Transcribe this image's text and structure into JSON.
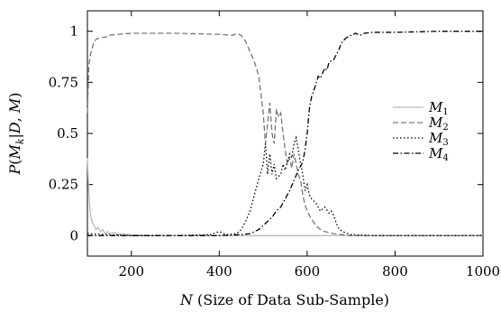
{
  "chart_data": {
    "type": "line",
    "xlabel": "N (Size of Data Sub-Sample)",
    "ylabel": "P(M_k|D,M)",
    "xlim": [
      100,
      1000
    ],
    "ylim": [
      -0.1,
      1.1
    ],
    "x_ticks": [
      200,
      400,
      600,
      800,
      1000
    ],
    "y_ticks": [
      0,
      0.25,
      0.5,
      0.75,
      1
    ],
    "x_tick_labels": [
      "200",
      "400",
      "600",
      "800",
      "1000"
    ],
    "y_tick_labels": [
      "0",
      "0.25",
      "0.5",
      "0.75",
      "1"
    ],
    "grid": false,
    "legend_position": "right",
    "series": [
      {
        "name": "M1",
        "color": "#bbbbbb",
        "dash": "solid",
        "points": [
          [
            100,
            0.38
          ],
          [
            103,
            0.22
          ],
          [
            106,
            0.12
          ],
          [
            110,
            0.07
          ],
          [
            115,
            0.05
          ],
          [
            120,
            0.03
          ],
          [
            125,
            0.04
          ],
          [
            130,
            0.02
          ],
          [
            135,
            0.03
          ],
          [
            140,
            0.01
          ],
          [
            145,
            0.02
          ],
          [
            150,
            0.01
          ],
          [
            160,
            0.015
          ],
          [
            170,
            0.005
          ],
          [
            180,
            0.01
          ],
          [
            200,
            0.003
          ],
          [
            250,
            0
          ],
          [
            1000,
            0
          ]
        ]
      },
      {
        "name": "M2",
        "color": "#777777",
        "dash": "6,3",
        "points": [
          [
            100,
            0.6
          ],
          [
            103,
            0.82
          ],
          [
            106,
            0.88
          ],
          [
            110,
            0.91
          ],
          [
            115,
            0.95
          ],
          [
            120,
            0.96
          ],
          [
            130,
            0.97
          ],
          [
            140,
            0.97
          ],
          [
            150,
            0.98
          ],
          [
            170,
            0.985
          ],
          [
            200,
            0.99
          ],
          [
            300,
            0.99
          ],
          [
            400,
            0.985
          ],
          [
            430,
            0.98
          ],
          [
            440,
            0.99
          ],
          [
            450,
            0.98
          ],
          [
            460,
            0.95
          ],
          [
            470,
            0.9
          ],
          [
            480,
            0.85
          ],
          [
            490,
            0.78
          ],
          [
            500,
            0.6
          ],
          [
            505,
            0.45
          ],
          [
            510,
            0.55
          ],
          [
            515,
            0.65
          ],
          [
            520,
            0.5
          ],
          [
            525,
            0.45
          ],
          [
            530,
            0.62
          ],
          [
            535,
            0.58
          ],
          [
            540,
            0.6
          ],
          [
            545,
            0.5
          ],
          [
            550,
            0.42
          ],
          [
            555,
            0.35
          ],
          [
            560,
            0.38
          ],
          [
            565,
            0.33
          ],
          [
            570,
            0.4
          ],
          [
            575,
            0.35
          ],
          [
            580,
            0.3
          ],
          [
            585,
            0.27
          ],
          [
            590,
            0.2
          ],
          [
            595,
            0.15
          ],
          [
            600,
            0.12
          ],
          [
            610,
            0.08
          ],
          [
            620,
            0.05
          ],
          [
            630,
            0.03
          ],
          [
            640,
            0.02
          ],
          [
            650,
            0.015
          ],
          [
            660,
            0.01
          ],
          [
            680,
            0.005
          ],
          [
            700,
            0
          ],
          [
            1000,
            0
          ]
        ]
      },
      {
        "name": "M3",
        "color": "#000000",
        "dash": "1.5,2.5",
        "points": [
          [
            100,
            0.01
          ],
          [
            200,
            0
          ],
          [
            300,
            0
          ],
          [
            380,
            0.005
          ],
          [
            400,
            0.02
          ],
          [
            410,
            0.01
          ],
          [
            420,
            0.005
          ],
          [
            440,
            0.01
          ],
          [
            450,
            0.03
          ],
          [
            460,
            0.07
          ],
          [
            470,
            0.12
          ],
          [
            480,
            0.2
          ],
          [
            490,
            0.28
          ],
          [
            500,
            0.35
          ],
          [
            505,
            0.45
          ],
          [
            510,
            0.3
          ],
          [
            515,
            0.4
          ],
          [
            520,
            0.3
          ],
          [
            525,
            0.35
          ],
          [
            530,
            0.28
          ],
          [
            540,
            0.3
          ],
          [
            545,
            0.35
          ],
          [
            550,
            0.32
          ],
          [
            555,
            0.36
          ],
          [
            560,
            0.4
          ],
          [
            565,
            0.38
          ],
          [
            570,
            0.45
          ],
          [
            575,
            0.48
          ],
          [
            580,
            0.42
          ],
          [
            585,
            0.35
          ],
          [
            590,
            0.3
          ],
          [
            595,
            0.22
          ],
          [
            600,
            0.25
          ],
          [
            605,
            0.2
          ],
          [
            610,
            0.18
          ],
          [
            620,
            0.16
          ],
          [
            630,
            0.12
          ],
          [
            640,
            0.14
          ],
          [
            650,
            0.11
          ],
          [
            655,
            0.12
          ],
          [
            660,
            0.1
          ],
          [
            665,
            0.07
          ],
          [
            670,
            0.04
          ],
          [
            680,
            0.02
          ],
          [
            700,
            0.005
          ],
          [
            750,
            0
          ],
          [
            1000,
            0
          ]
        ]
      },
      {
        "name": "M4",
        "color": "#000000",
        "dash": "6,2.5,1.5,2.5",
        "points": [
          [
            100,
            0
          ],
          [
            400,
            0
          ],
          [
            450,
            0.005
          ],
          [
            470,
            0.01
          ],
          [
            480,
            0.02
          ],
          [
            490,
            0.03
          ],
          [
            500,
            0.05
          ],
          [
            510,
            0.07
          ],
          [
            520,
            0.09
          ],
          [
            530,
            0.12
          ],
          [
            540,
            0.14
          ],
          [
            550,
            0.18
          ],
          [
            560,
            0.22
          ],
          [
            570,
            0.27
          ],
          [
            580,
            0.32
          ],
          [
            590,
            0.36
          ],
          [
            595,
            0.42
          ],
          [
            600,
            0.5
          ],
          [
            605,
            0.62
          ],
          [
            610,
            0.68
          ],
          [
            620,
            0.74
          ],
          [
            625,
            0.78
          ],
          [
            630,
            0.77
          ],
          [
            640,
            0.82
          ],
          [
            645,
            0.81
          ],
          [
            650,
            0.85
          ],
          [
            660,
            0.86
          ],
          [
            670,
            0.9
          ],
          [
            680,
            0.95
          ],
          [
            690,
            0.97
          ],
          [
            700,
            0.98
          ],
          [
            710,
            0.99
          ],
          [
            720,
            0.98
          ],
          [
            730,
            0.99
          ],
          [
            750,
            0.995
          ],
          [
            800,
            0.995
          ],
          [
            900,
            1
          ],
          [
            1000,
            1
          ]
        ]
      }
    ]
  }
}
